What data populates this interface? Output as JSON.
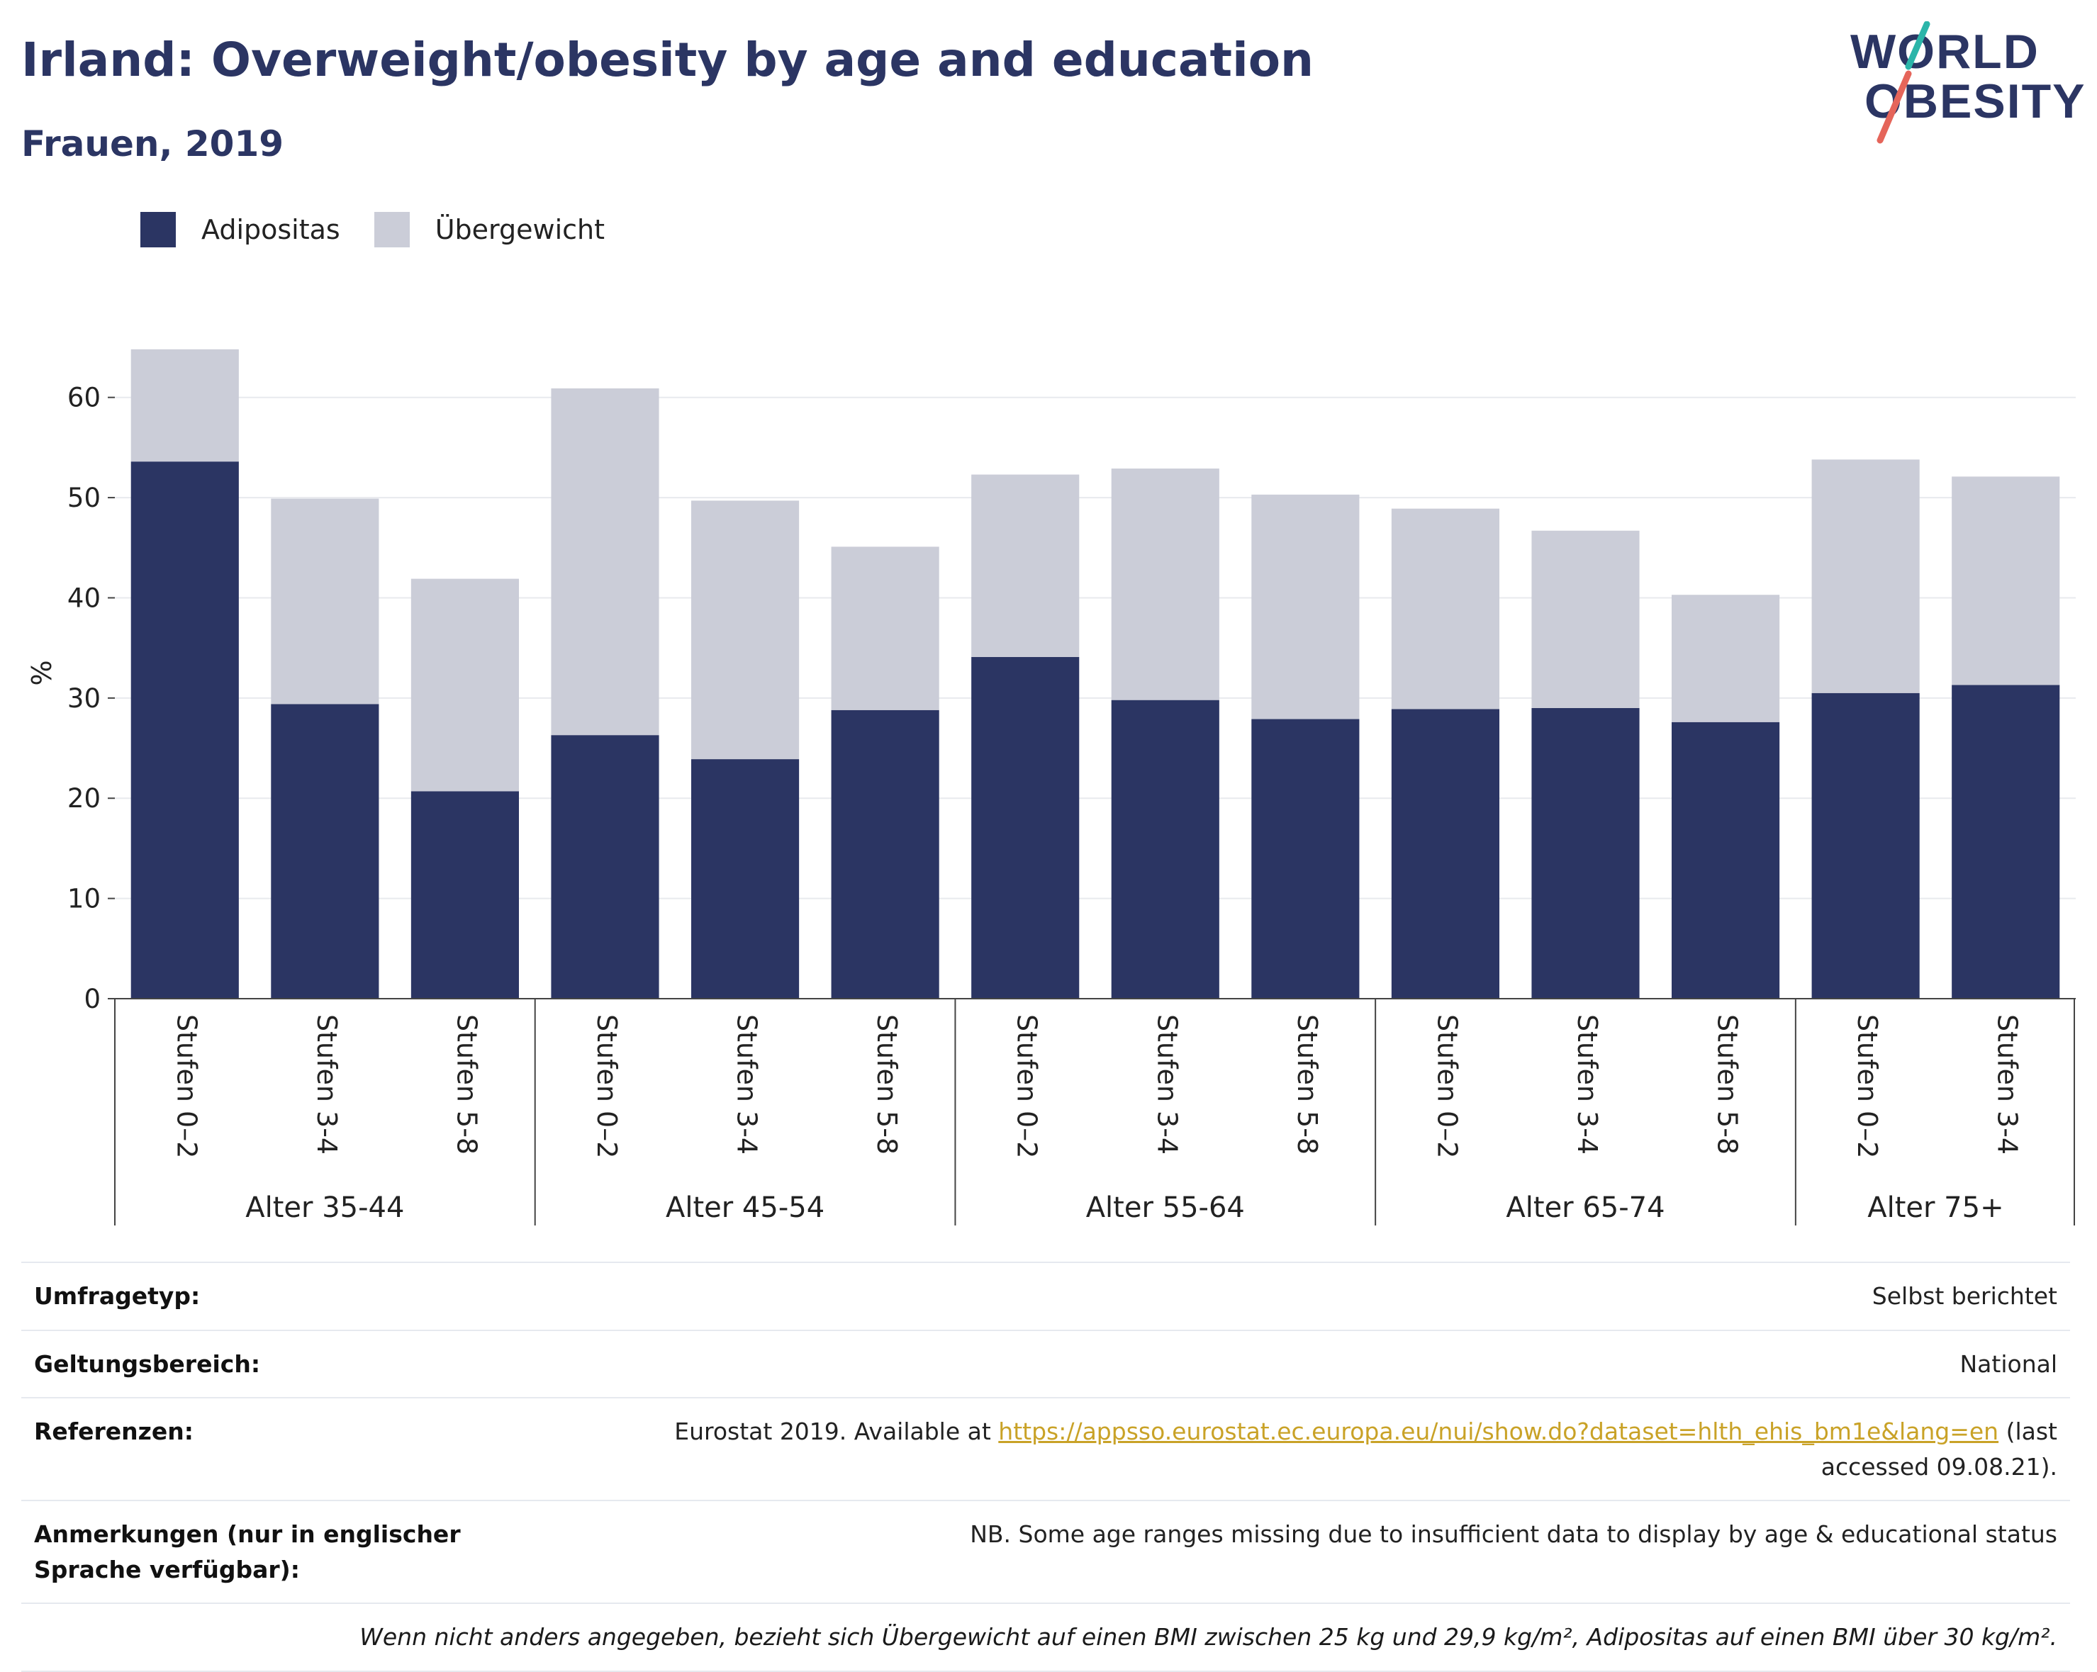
{
  "header": {
    "title": "Irland: Overweight/obesity by age and education",
    "subtitle": "Frauen, 2019"
  },
  "logo": {
    "line1": "WORLD",
    "line2": "OBESITY"
  },
  "colors": {
    "obesity": "#2b3563",
    "overweight": "#cbcdd8",
    "title": "#2b3563",
    "accent_teal": "#2bb5a9",
    "accent_red": "#e5655a"
  },
  "chart_data": {
    "type": "bar",
    "stacked": true,
    "ylabel": "%",
    "ylim": [
      0,
      65
    ],
    "yticks": [
      0,
      10,
      20,
      30,
      40,
      50,
      60
    ],
    "grid": true,
    "legend_position": "top-left",
    "groups": [
      {
        "label": "Alter 35-44",
        "categories": [
          "Stufen 0–2",
          "Stufen 3-4",
          "Stufen 5-8"
        ]
      },
      {
        "label": "Alter 45-54",
        "categories": [
          "Stufen 0–2",
          "Stufen 3-4",
          "Stufen 5-8"
        ]
      },
      {
        "label": "Alter 55-64",
        "categories": [
          "Stufen 0–2",
          "Stufen 3-4",
          "Stufen 5-8"
        ]
      },
      {
        "label": "Alter 65-74",
        "categories": [
          "Stufen 0–2",
          "Stufen 3-4",
          "Stufen 5-8"
        ]
      },
      {
        "label": "Alter 75+",
        "categories": [
          "Stufen 0–2",
          "Stufen 3-4"
        ]
      }
    ],
    "series": [
      {
        "name": "Adipositas",
        "color": "#2b3563",
        "values": [
          53.6,
          29.4,
          20.7,
          26.3,
          23.9,
          28.8,
          34.1,
          29.8,
          27.9,
          28.9,
          29.0,
          27.6,
          30.5,
          31.3
        ]
      },
      {
        "name": "Übergewicht",
        "color": "#cbcdd8",
        "values": [
          11.2,
          20.5,
          21.2,
          34.6,
          25.8,
          16.3,
          18.2,
          23.1,
          22.4,
          20.0,
          17.7,
          12.7,
          23.3,
          20.8
        ]
      }
    ]
  },
  "info": [
    {
      "label": "Umfragetyp:",
      "value": "Selbst berichtet"
    },
    {
      "label": "Geltungsbereich:",
      "value": "National"
    },
    {
      "label": "Referenzen:",
      "value_prefix": "Eurostat 2019. Available at ",
      "link": "https://appsso.eurostat.ec.europa.eu/nui/show.do?dataset=hlth_ehis_bm1e&lang=en",
      "value_suffix": " (last accessed 09.08.21)."
    },
    {
      "label": "Anmerkungen (nur in englischer Sprache verfügbar):",
      "value": "NB. Some age ranges missing due to insufficient data to display by age & educational status"
    }
  ],
  "footnote": "Wenn nicht anders angegeben, bezieht sich Übergewicht auf einen BMI zwischen 25 kg und 29,9 kg/m², Adipositas auf einen BMI über 30 kg/m²."
}
